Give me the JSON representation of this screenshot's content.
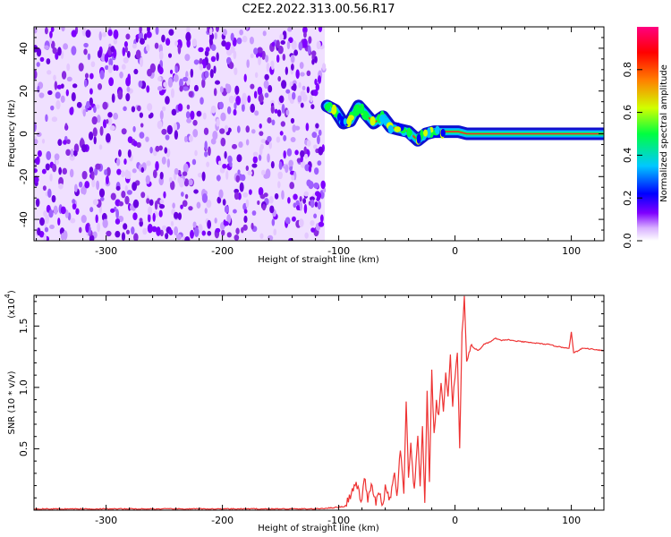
{
  "figure": {
    "title": "C2E2.2022.313.00.56.R17"
  },
  "chart_data": [
    {
      "type": "heatmap",
      "xlabel": "Height of straight line (km)",
      "ylabel": "Frequency (Hz)",
      "xlim": [
        -362,
        128
      ],
      "ylim": [
        -50,
        50
      ],
      "xticks": [
        -300,
        -200,
        -100,
        0,
        100
      ],
      "yticks": [
        -40,
        -20,
        0,
        20,
        40
      ],
      "noise_region": [
        -362,
        -112
      ],
      "signal_track": [
        [
          -110,
          13
        ],
        [
          -103,
          11
        ],
        [
          -96,
          5
        ],
        [
          -90,
          6
        ],
        [
          -83,
          13
        ],
        [
          -78,
          10
        ],
        [
          -70,
          5
        ],
        [
          -62,
          8
        ],
        [
          -55,
          3
        ],
        [
          -48,
          2
        ],
        [
          -40,
          1
        ],
        [
          -32,
          -3
        ],
        [
          -25,
          0
        ],
        [
          -18,
          1
        ],
        [
          -10,
          1
        ],
        [
          -4,
          1
        ],
        [
          3,
          1
        ],
        [
          10,
          0
        ],
        [
          128,
          0
        ]
      ],
      "colorbar": {
        "label": "Normalized spectral amplitude",
        "range": [
          0,
          1
        ],
        "ticks": [
          0.0,
          0.2,
          0.4,
          0.6,
          0.8
        ],
        "colors": [
          "#ffffff",
          "#d8b0ff",
          "#7f00ff",
          "#0000ff",
          "#00c8ff",
          "#00ff40",
          "#d0ff00",
          "#ff8000",
          "#ff0000",
          "#ff0080"
        ]
      },
      "grid": false
    },
    {
      "type": "line",
      "xlabel": "Height of straight line (km)",
      "ylabel": "SNR (10 * v/v)",
      "scale_label": "(x10",
      "scale_exp": "4",
      "xlim": [
        -362,
        128
      ],
      "ylim": [
        0,
        1.75
      ],
      "xticks": [
        -300,
        -200,
        -100,
        0,
        100
      ],
      "yticks": [
        0.5,
        1.0,
        1.5
      ],
      "ytick_labels": [
        "0.5",
        "1.0",
        "1.5"
      ],
      "series": [
        {
          "color": "#ee3333",
          "x": [
            -362,
            -300,
            -200,
            -120,
            -105,
            -95,
            -90,
            -85,
            -80,
            -78,
            -75,
            -72,
            -68,
            -65,
            -62,
            -60,
            -56,
            -52,
            -50,
            -47,
            -44,
            -42,
            -40,
            -38,
            -35,
            -32,
            -30,
            -28,
            -26,
            -24,
            -22,
            -20,
            -18,
            -16,
            -14,
            -12,
            -10,
            -8,
            -6,
            -4,
            -2,
            0,
            2,
            4,
            6,
            8,
            10,
            12,
            15,
            20,
            25,
            30,
            35,
            40,
            45,
            50,
            60,
            70,
            80,
            90,
            98,
            100,
            102,
            110,
            120,
            128
          ],
          "y": [
            0.01,
            0.01,
            0.01,
            0.01,
            0.02,
            0.03,
            0.12,
            0.22,
            0.06,
            0.28,
            0.08,
            0.2,
            0.06,
            0.14,
            0.04,
            0.18,
            0.08,
            0.3,
            0.1,
            0.5,
            0.12,
            0.9,
            0.25,
            0.52,
            0.15,
            0.6,
            0.2,
            0.7,
            0.03,
            0.95,
            0.25,
            1.12,
            0.6,
            0.9,
            0.75,
            1.05,
            0.8,
            1.1,
            0.95,
            1.25,
            0.85,
            1.1,
            1.3,
            0.5,
            1.45,
            1.72,
            1.2,
            1.3,
            1.33,
            1.3,
            1.35,
            1.37,
            1.4,
            1.38,
            1.39,
            1.38,
            1.37,
            1.36,
            1.35,
            1.33,
            1.32,
            1.45,
            1.28,
            1.32,
            1.31,
            1.3
          ]
        }
      ],
      "grid": false
    }
  ]
}
